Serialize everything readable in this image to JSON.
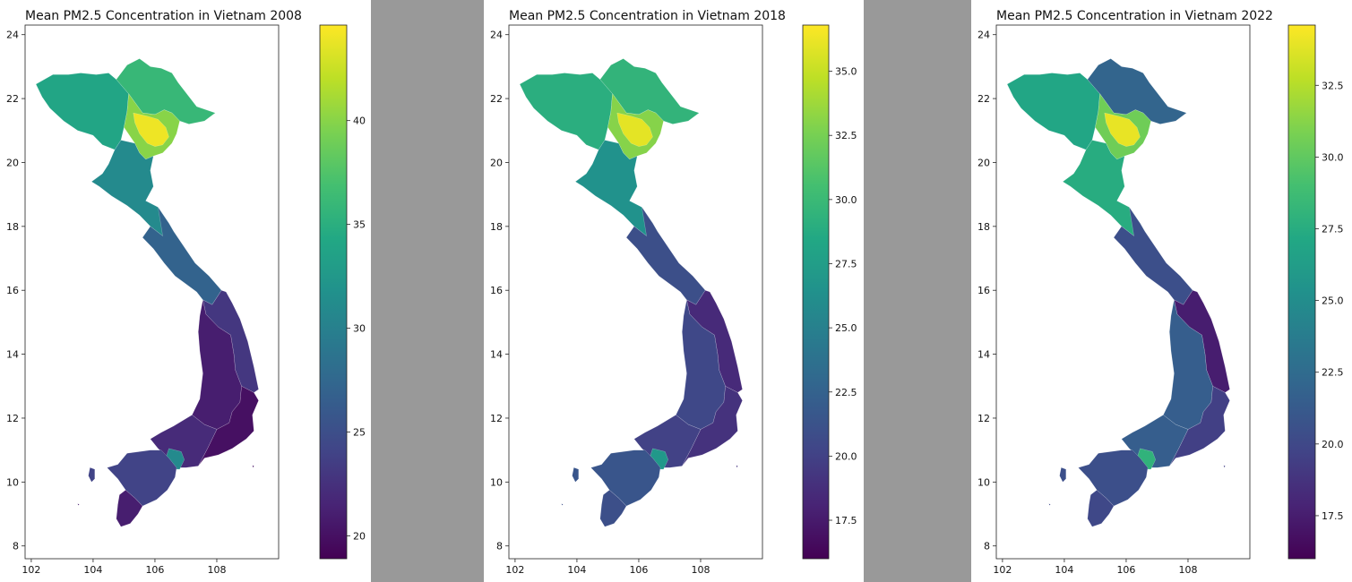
{
  "figure": {
    "colormap": "viridis",
    "background": "#ffffff",
    "gap_color": "#999999",
    "region_border": "#ffffff"
  },
  "chart_data": [
    {
      "type": "choropleth",
      "title": "Mean PM2.5 Concentration in Vietnam 2008",
      "xlim": [
        101.8,
        110.0
      ],
      "ylim": [
        7.6,
        24.3
      ],
      "xticks": [
        102,
        104,
        106,
        108
      ],
      "yticks": [
        8,
        10,
        12,
        14,
        16,
        18,
        20,
        22,
        24
      ],
      "colorbar": {
        "min": 18.9,
        "max": 44.6,
        "ticks": [
          20,
          25,
          30,
          35,
          40
        ],
        "tick_labels": [
          "20",
          "25",
          "30",
          "35",
          "40"
        ]
      },
      "regions": {
        "northwest": 34,
        "northeast": 36,
        "red_river_delta": 44,
        "delta_ring": 40,
        "north_central": 31,
        "central_coast_north": 27,
        "central_coast_mid": 23,
        "central_highlands": 21,
        "south_central_coast": 20,
        "southeast": 22,
        "hcmc": 31,
        "mekong_delta": 24,
        "ca_mau": 21
      }
    },
    {
      "type": "choropleth",
      "title": "Mean PM2.5 Concentration in Vietnam 2018",
      "xlim": [
        101.8,
        110.0
      ],
      "ylim": [
        7.6,
        24.3
      ],
      "xticks": [
        102,
        104,
        106,
        108
      ],
      "yticks": [
        8,
        10,
        12,
        14,
        16,
        18,
        20,
        22,
        24
      ],
      "colorbar": {
        "min": 16.0,
        "max": 36.8,
        "ticks": [
          17.5,
          20.0,
          22.5,
          25.0,
          27.5,
          30.0,
          32.5,
          35.0
        ],
        "tick_labels": [
          "17.5",
          "20.0",
          "22.5",
          "25.0",
          "27.5",
          "30.0",
          "32.5",
          "35.0"
        ]
      },
      "regions": {
        "northwest": 29,
        "northeast": 29.5,
        "red_river_delta": 36,
        "delta_ring": 33,
        "north_central": 26.5,
        "central_coast_north": 21,
        "central_coast_mid": 18.5,
        "central_highlands": 20.5,
        "south_central_coast": 19,
        "southeast": 20,
        "hcmc": 27,
        "mekong_delta": 21.5,
        "ca_mau": 21
      }
    },
    {
      "type": "choropleth",
      "title": "Mean PM2.5 Concentration in Vietnam 2022",
      "xlim": [
        101.8,
        110.0
      ],
      "ylim": [
        7.6,
        24.3
      ],
      "xticks": [
        102,
        104,
        106,
        108
      ],
      "yticks": [
        8,
        10,
        12,
        14,
        16,
        18,
        20,
        22,
        24
      ],
      "colorbar": {
        "min": 16.0,
        "max": 34.6,
        "ticks": [
          17.5,
          20.0,
          22.5,
          25.0,
          27.5,
          30.0,
          32.5
        ],
        "tick_labels": [
          "17.5",
          "20.0",
          "22.5",
          "25.0",
          "27.5",
          "30.0",
          "32.5"
        ]
      },
      "regions": {
        "northwest": 27,
        "northeast": 22,
        "red_river_delta": 34,
        "delta_ring": 30.5,
        "north_central": 27.5,
        "central_coast_north": 20.5,
        "central_coast_mid": 17.5,
        "central_highlands": 21.5,
        "south_central_coast": 19.5,
        "southeast": 21.5,
        "hcmc": 28,
        "mekong_delta": 20.5,
        "ca_mau": 20
      }
    }
  ]
}
